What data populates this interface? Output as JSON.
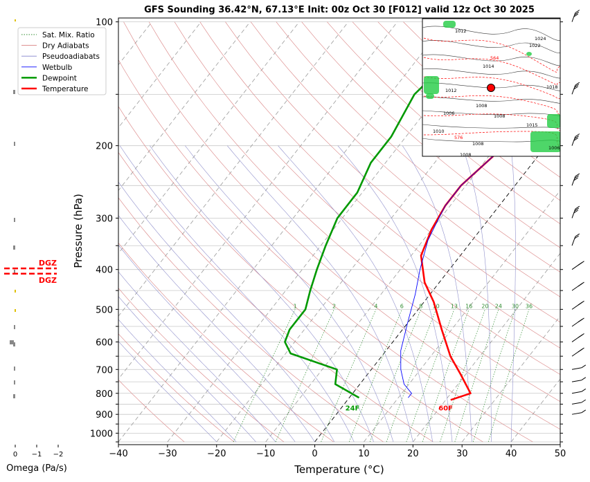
{
  "chart_data": {
    "type": "line",
    "title": "GFS Sounding 36.42°N, 67.13°E Init: 00z Oct 30 [F012] valid 12z Oct 30 2025",
    "xlabel": "Temperature (°C)",
    "ylabel": "Pressure (hPa)",
    "xlim": [
      -40,
      50
    ],
    "ylim": [
      1050,
      100
    ],
    "y_scale": "log",
    "skew": "skew-T",
    "x_ticks": [
      "−40",
      "−30",
      "−20",
      "−10",
      "0",
      "10",
      "20",
      "30",
      "40",
      "50"
    ],
    "y_ticks": [
      "100",
      "200",
      "300",
      "400",
      "500",
      "600",
      "700",
      "800",
      "900",
      "1000"
    ],
    "legend": {
      "placement": "top-left",
      "entries": [
        {
          "name": "Sat. Mix. Ratio",
          "color": "#2e8b2e",
          "style": "dotted"
        },
        {
          "name": "Dry Adiabats",
          "color": "#d98080",
          "style": "solid"
        },
        {
          "name": "Pseudoadiabats",
          "color": "#8080cc",
          "style": "solid"
        },
        {
          "name": "Wetbulb",
          "color": "#0000ff",
          "style": "solid"
        },
        {
          "name": "Dewpoint",
          "color": "#009900",
          "style": "solid"
        },
        {
          "name": "Temperature",
          "color": "#ff0000",
          "style": "solid"
        }
      ]
    },
    "mixing_ratio_labels": [
      "1",
      "2",
      "4",
      "6",
      "8",
      "10",
      "13",
      "16",
      "20",
      "24",
      "30",
      "36"
    ],
    "series": [
      {
        "name": "Temperature",
        "color": "#ff0000",
        "points": [
          [
            21,
            830
          ],
          [
            24,
            800
          ],
          [
            19,
            720
          ],
          [
            14,
            650
          ],
          [
            8,
            560
          ],
          [
            2,
            480
          ],
          [
            -3,
            430
          ],
          [
            -8,
            370
          ],
          [
            -10,
            320
          ],
          [
            -11,
            280
          ],
          [
            -11,
            250
          ],
          [
            -9,
            210
          ],
          [
            -7,
            180
          ],
          [
            -5,
            150
          ],
          [
            -3,
            125
          ],
          [
            -2,
            110
          ],
          [
            -1,
            100
          ]
        ]
      },
      {
        "name": "Wetbulb",
        "color": "#0000ff",
        "points": [
          [
            12,
            820
          ],
          [
            12,
            800
          ],
          [
            9,
            760
          ],
          [
            6,
            700
          ],
          [
            3,
            630
          ],
          [
            0,
            540
          ],
          [
            -3,
            460
          ],
          [
            -6,
            400
          ],
          [
            -9,
            340
          ],
          [
            -10,
            310
          ],
          [
            -11,
            280
          ],
          [
            -11,
            250
          ],
          [
            -9,
            210
          ],
          [
            -7,
            180
          ],
          [
            -5,
            150
          ],
          [
            -3,
            125
          ],
          [
            -2,
            110
          ],
          [
            -1,
            100
          ]
        ]
      },
      {
        "name": "Dewpoint",
        "color": "#009900",
        "points": [
          [
            2,
            820
          ],
          [
            -5,
            760
          ],
          [
            -7,
            700
          ],
          [
            -19,
            640
          ],
          [
            -22,
            600
          ],
          [
            -23,
            560
          ],
          [
            -23,
            500
          ],
          [
            -25,
            450
          ],
          [
            -27,
            400
          ],
          [
            -29,
            350
          ],
          [
            -31,
            300
          ],
          [
            -31,
            260
          ],
          [
            -33,
            220
          ],
          [
            -33,
            190
          ],
          [
            -35,
            150
          ],
          [
            -33,
            120
          ],
          [
            -30,
            100
          ]
        ]
      }
    ],
    "annotations": [
      {
        "text": "24F",
        "x": 2,
        "p": 860,
        "color": "#009900"
      },
      {
        "text": "60F",
        "x": 21,
        "p": 860,
        "color": "#ff0000"
      }
    ],
    "omega_panel": {
      "xlabel": "Omega (Pa/s)",
      "x_ticks": [
        "0",
        "−1",
        "−2"
      ],
      "dgz_label": "DGZ",
      "dgz_top_p": 450,
      "dgz_bottom_p": 495
    },
    "inset_map": {
      "isobar_labels": [
        "1012",
        "1024",
        "1022",
        "564",
        "1014",
        "1018",
        "1012",
        "1008",
        "1006",
        "1008",
        "1010",
        "1015",
        "1008",
        "1006",
        "1008",
        "576"
      ]
    }
  }
}
